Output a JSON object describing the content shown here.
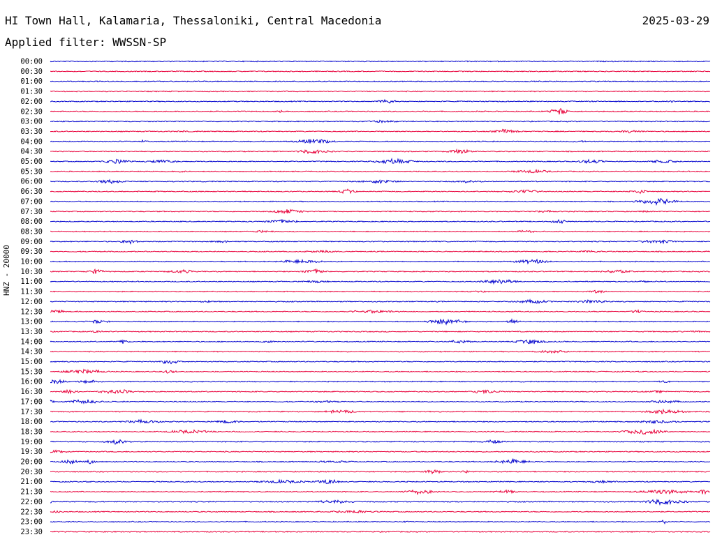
{
  "header": {
    "station": "HI Town Hall, Kalamaria, Thessaloniki, Central Macedonia",
    "date": "2025-03-29",
    "filter": "Applied filter: WWSSN-SP"
  },
  "chart_data": {
    "type": "line",
    "title": "HI Town Hall, Kalamaria, Thessaloniki, Central Macedonia",
    "channel_label": "HNZ - 20000",
    "row_labels": [
      "00:00",
      "00:30",
      "01:00",
      "01:30",
      "02:00",
      "02:30",
      "03:00",
      "03:30",
      "04:00",
      "04:30",
      "05:00",
      "05:30",
      "06:00",
      "06:30",
      "07:00",
      "07:30",
      "08:00",
      "08:30",
      "09:00",
      "09:30",
      "10:00",
      "10:30",
      "11:00",
      "11:30",
      "12:00",
      "12:30",
      "13:00",
      "13:30",
      "14:00",
      "14:30",
      "15:00",
      "15:30",
      "16:00",
      "16:30",
      "17:00",
      "17:30",
      "18:00",
      "18:30",
      "19:00",
      "19:30",
      "20:00",
      "20:30",
      "21:00",
      "21:30",
      "22:00",
      "22:30",
      "23:00",
      "23:30"
    ],
    "colors": [
      "#0000cc",
      "#e8003a"
    ],
    "background": "#ffffff",
    "bursts": [
      [],
      [],
      [],
      [],
      [
        [
          0.51,
          4,
          0.02
        ],
        [
          0.94,
          2,
          0.01
        ]
      ],
      [
        [
          0.35,
          2,
          0.02
        ],
        [
          0.65,
          1.5,
          0.02
        ],
        [
          0.77,
          7,
          0.02
        ]
      ],
      [
        [
          0.5,
          2,
          0.05
        ]
      ],
      [
        [
          0.2,
          1.5,
          0.02
        ],
        [
          0.69,
          4,
          0.03
        ],
        [
          0.88,
          3,
          0.03
        ]
      ],
      [
        [
          0.14,
          2,
          0.02
        ],
        [
          0.4,
          4,
          0.05
        ],
        [
          0.8,
          2,
          0.02
        ]
      ],
      [
        [
          0.4,
          4,
          0.04
        ],
        [
          0.62,
          4,
          0.03
        ]
      ],
      [
        [
          0.1,
          4,
          0.03
        ],
        [
          0.17,
          3,
          0.04
        ],
        [
          0.52,
          4,
          0.05
        ],
        [
          0.82,
          4,
          0.03
        ],
        [
          0.93,
          3,
          0.04
        ]
      ],
      [
        [
          0.2,
          1.5,
          0.02
        ],
        [
          0.73,
          3,
          0.05
        ]
      ],
      [
        [
          0.09,
          4,
          0.03
        ],
        [
          0.5,
          3,
          0.05
        ],
        [
          0.63,
          2,
          0.05
        ]
      ],
      [
        [
          0.45,
          4,
          0.02
        ],
        [
          0.72,
          3,
          0.04
        ],
        [
          0.89,
          4,
          0.02
        ]
      ],
      [
        [
          0.92,
          5,
          0.05
        ]
      ],
      [
        [
          0.36,
          4,
          0.04
        ],
        [
          0.75,
          2,
          0.03
        ],
        [
          0.9,
          2,
          0.01
        ]
      ],
      [
        [
          0.35,
          3,
          0.05
        ],
        [
          0.77,
          4,
          0.02
        ]
      ],
      [
        [
          0.32,
          2,
          0.04
        ],
        [
          0.72,
          2,
          0.04
        ]
      ],
      [
        [
          0.12,
          4,
          0.02
        ],
        [
          0.26,
          2,
          0.03
        ],
        [
          0.92,
          3,
          0.05
        ]
      ],
      [
        [
          0.41,
          2,
          0.05
        ],
        [
          0.82,
          2,
          0.03
        ]
      ],
      [
        [
          0.38,
          3,
          0.06
        ],
        [
          0.73,
          4,
          0.04
        ]
      ],
      [
        [
          0.07,
          4,
          0.02
        ],
        [
          0.2,
          3,
          0.04
        ],
        [
          0.4,
          4,
          0.03
        ],
        [
          0.86,
          3,
          0.04
        ]
      ],
      [
        [
          0.4,
          2,
          0.04
        ],
        [
          0.68,
          5,
          0.04
        ],
        [
          0.9,
          2,
          0.02
        ]
      ],
      [
        [
          0.65,
          1.5,
          0.03
        ],
        [
          0.83,
          3,
          0.02
        ]
      ],
      [
        [
          0.24,
          2,
          0.03
        ],
        [
          0.73,
          3,
          0.05
        ],
        [
          0.82,
          3,
          0.04
        ]
      ],
      [
        [
          0.01,
          3,
          0.02
        ],
        [
          0.49,
          3,
          0.06
        ],
        [
          0.89,
          3,
          0.02
        ]
      ],
      [
        [
          0.07,
          3,
          0.03
        ],
        [
          0.6,
          5,
          0.04
        ],
        [
          0.7,
          4,
          0.02
        ]
      ],
      [
        [
          0.07,
          2,
          0.02
        ],
        [
          0.98,
          2,
          0.02
        ]
      ],
      [
        [
          0.11,
          3,
          0.02
        ],
        [
          0.33,
          2,
          0.02
        ],
        [
          0.62,
          3,
          0.03
        ],
        [
          0.73,
          4,
          0.04
        ]
      ],
      [
        [
          0.76,
          3,
          0.04
        ]
      ],
      [
        [
          0.18,
          5,
          0.02
        ]
      ],
      [
        [
          0.05,
          4,
          0.05
        ],
        [
          0.18,
          3,
          0.02
        ]
      ],
      [
        [
          0.01,
          4,
          0.02
        ],
        [
          0.06,
          3,
          0.03
        ],
        [
          0.93,
          2,
          0.02
        ]
      ],
      [
        [
          0.03,
          4,
          0.02
        ],
        [
          0.1,
          4,
          0.04
        ],
        [
          0.66,
          3,
          0.04
        ],
        [
          0.92,
          2,
          0.03
        ]
      ],
      [
        [
          0.0,
          4,
          0.01
        ],
        [
          0.05,
          4,
          0.04
        ],
        [
          0.42,
          2,
          0.04
        ],
        [
          0.93,
          3,
          0.04
        ]
      ],
      [
        [
          0.44,
          3,
          0.04
        ],
        [
          0.93,
          4,
          0.05
        ]
      ],
      [
        [
          0.14,
          3,
          0.05
        ],
        [
          0.27,
          3,
          0.03
        ],
        [
          0.92,
          3,
          0.05
        ]
      ],
      [
        [
          0.21,
          3,
          0.06
        ],
        [
          0.9,
          5,
          0.05
        ]
      ],
      [
        [
          0.1,
          4,
          0.03
        ],
        [
          0.67,
          3,
          0.03
        ]
      ],
      [
        [
          0.01,
          3,
          0.03
        ]
      ],
      [
        [
          0.03,
          5,
          0.02
        ],
        [
          0.06,
          3,
          0.02
        ],
        [
          0.43,
          2,
          0.05
        ],
        [
          0.7,
          4,
          0.04
        ]
      ],
      [
        [
          0.58,
          4,
          0.02
        ],
        [
          0.63,
          2,
          0.02
        ]
      ],
      [
        [
          0.35,
          3,
          0.06
        ],
        [
          0.42,
          4,
          0.03
        ],
        [
          0.84,
          2,
          0.04
        ]
      ],
      [
        [
          0.56,
          4,
          0.04
        ],
        [
          0.69,
          3,
          0.03
        ],
        [
          0.93,
          4,
          0.06
        ],
        [
          0.99,
          5,
          0.01
        ]
      ],
      [
        [
          0.0,
          3,
          0.01
        ],
        [
          0.43,
          3,
          0.05
        ],
        [
          0.93,
          5,
          0.05
        ]
      ],
      [
        [
          0.01,
          3,
          0.01
        ],
        [
          0.46,
          3,
          0.05
        ]
      ],
      [
        [
          0.54,
          1.5,
          0.01
        ],
        [
          0.93,
          4,
          0.01
        ]
      ],
      []
    ]
  }
}
